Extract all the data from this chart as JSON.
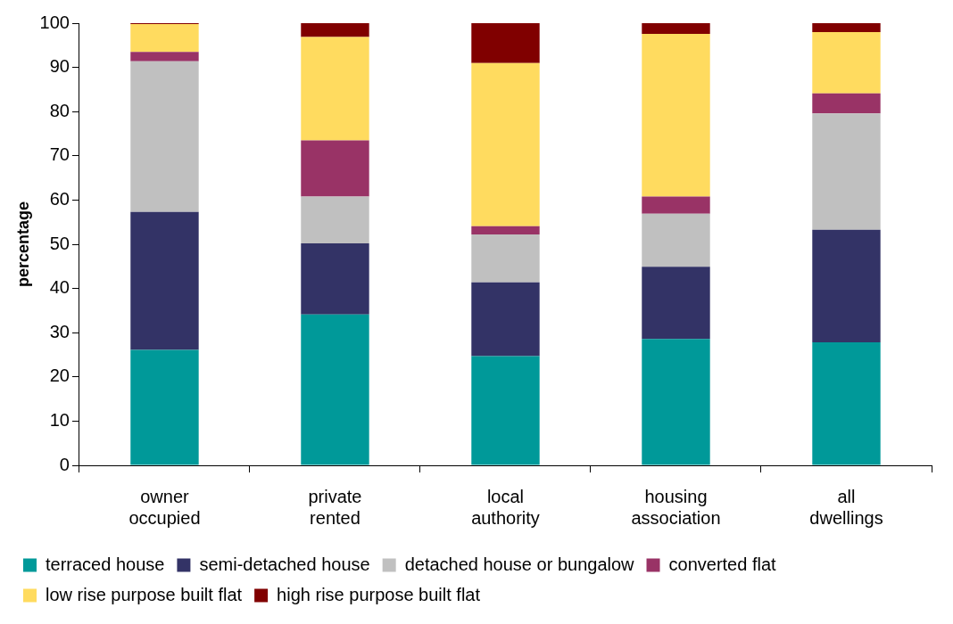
{
  "chart_data": {
    "type": "bar",
    "stacked": true,
    "ylabel": "percentage",
    "categories": [
      "owner occupied",
      "private rented",
      "local authority",
      "housing association",
      "all dwellings"
    ],
    "series": [
      {
        "name": "terraced house",
        "color": "#009999",
        "values": [
          26.1,
          34.1,
          24.7,
          28.6,
          27.8
        ]
      },
      {
        "name": "semi-detached house",
        "color": "#333366",
        "values": [
          31.2,
          16.1,
          16.7,
          16.3,
          25.5
        ]
      },
      {
        "name": "detached house or bungalow",
        "color": "#c0c0c0",
        "values": [
          34.1,
          10.6,
          10.8,
          12.0,
          26.3
        ]
      },
      {
        "name": "converted flat",
        "color": "#993366",
        "values": [
          2.1,
          12.7,
          1.9,
          3.9,
          4.5
        ]
      },
      {
        "name": "low rise purpose built flat",
        "color": "#ffdb5f",
        "values": [
          6.3,
          23.4,
          36.9,
          36.8,
          13.9
        ]
      },
      {
        "name": "high rise purpose built flat",
        "color": "#800000",
        "values": [
          0.2,
          3.1,
          9.0,
          2.4,
          2.0
        ]
      }
    ],
    "ylim": [
      0,
      100
    ],
    "yticks": [
      0,
      10,
      20,
      30,
      40,
      50,
      60,
      70,
      80,
      90,
      100
    ],
    "grid": false,
    "legend": "bottom"
  }
}
